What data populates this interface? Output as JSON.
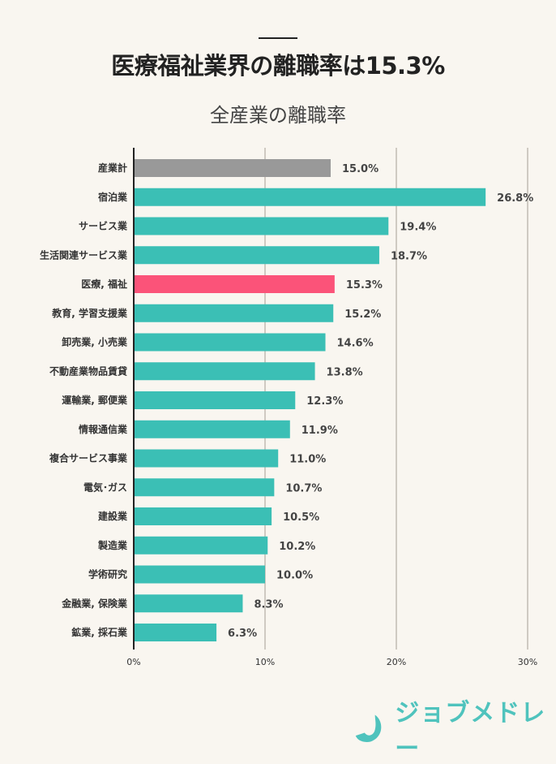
{
  "header": {
    "title": "医療福祉業界の離職率は15.3%"
  },
  "chart_data": {
    "type": "bar",
    "orientation": "horizontal",
    "title": "全産業の離職率",
    "categories": [
      "産業計",
      "宿泊業",
      "サービス業",
      "生活関連サービス業",
      "医療, 福祉",
      "教育, 学習支援業",
      "卸売業, 小売業",
      "不動産業物品賃貸",
      "運輸業, 郵便業",
      "情報通信業",
      "複合サービス事業",
      "電気･ガス",
      "建設業",
      "製造業",
      "学術研究",
      "金融業, 保険業",
      "鉱業, 採石業"
    ],
    "values": [
      15.0,
      26.8,
      19.4,
      18.7,
      15.3,
      15.2,
      14.6,
      13.8,
      12.3,
      11.9,
      11.0,
      10.7,
      10.5,
      10.2,
      10.0,
      8.3,
      6.3
    ],
    "data_labels": [
      "15.0%",
      "26.8%",
      "19.4%",
      "18.7%",
      "15.3%",
      "15.2%",
      "14.6%",
      "13.8%",
      "12.3%",
      "11.9%",
      "11.0%",
      "10.7%",
      "10.5%",
      "10.2%",
      "10.0%",
      "8.3%",
      "6.3%"
    ],
    "xlim": [
      0,
      30
    ],
    "x_ticks": [
      0,
      10,
      20,
      30
    ],
    "x_tick_labels": [
      "0%",
      "10%",
      "20%",
      "30%"
    ],
    "grid": true,
    "colors": {
      "default": "#3bbfb5",
      "total": "#999999",
      "highlight": "#fb5379"
    },
    "color_per_bar": [
      "total",
      "default",
      "default",
      "default",
      "highlight",
      "default",
      "default",
      "default",
      "default",
      "default",
      "default",
      "default",
      "default",
      "default",
      "default",
      "default",
      "default"
    ]
  },
  "logo": {
    "text": "ジョブメドレー"
  }
}
